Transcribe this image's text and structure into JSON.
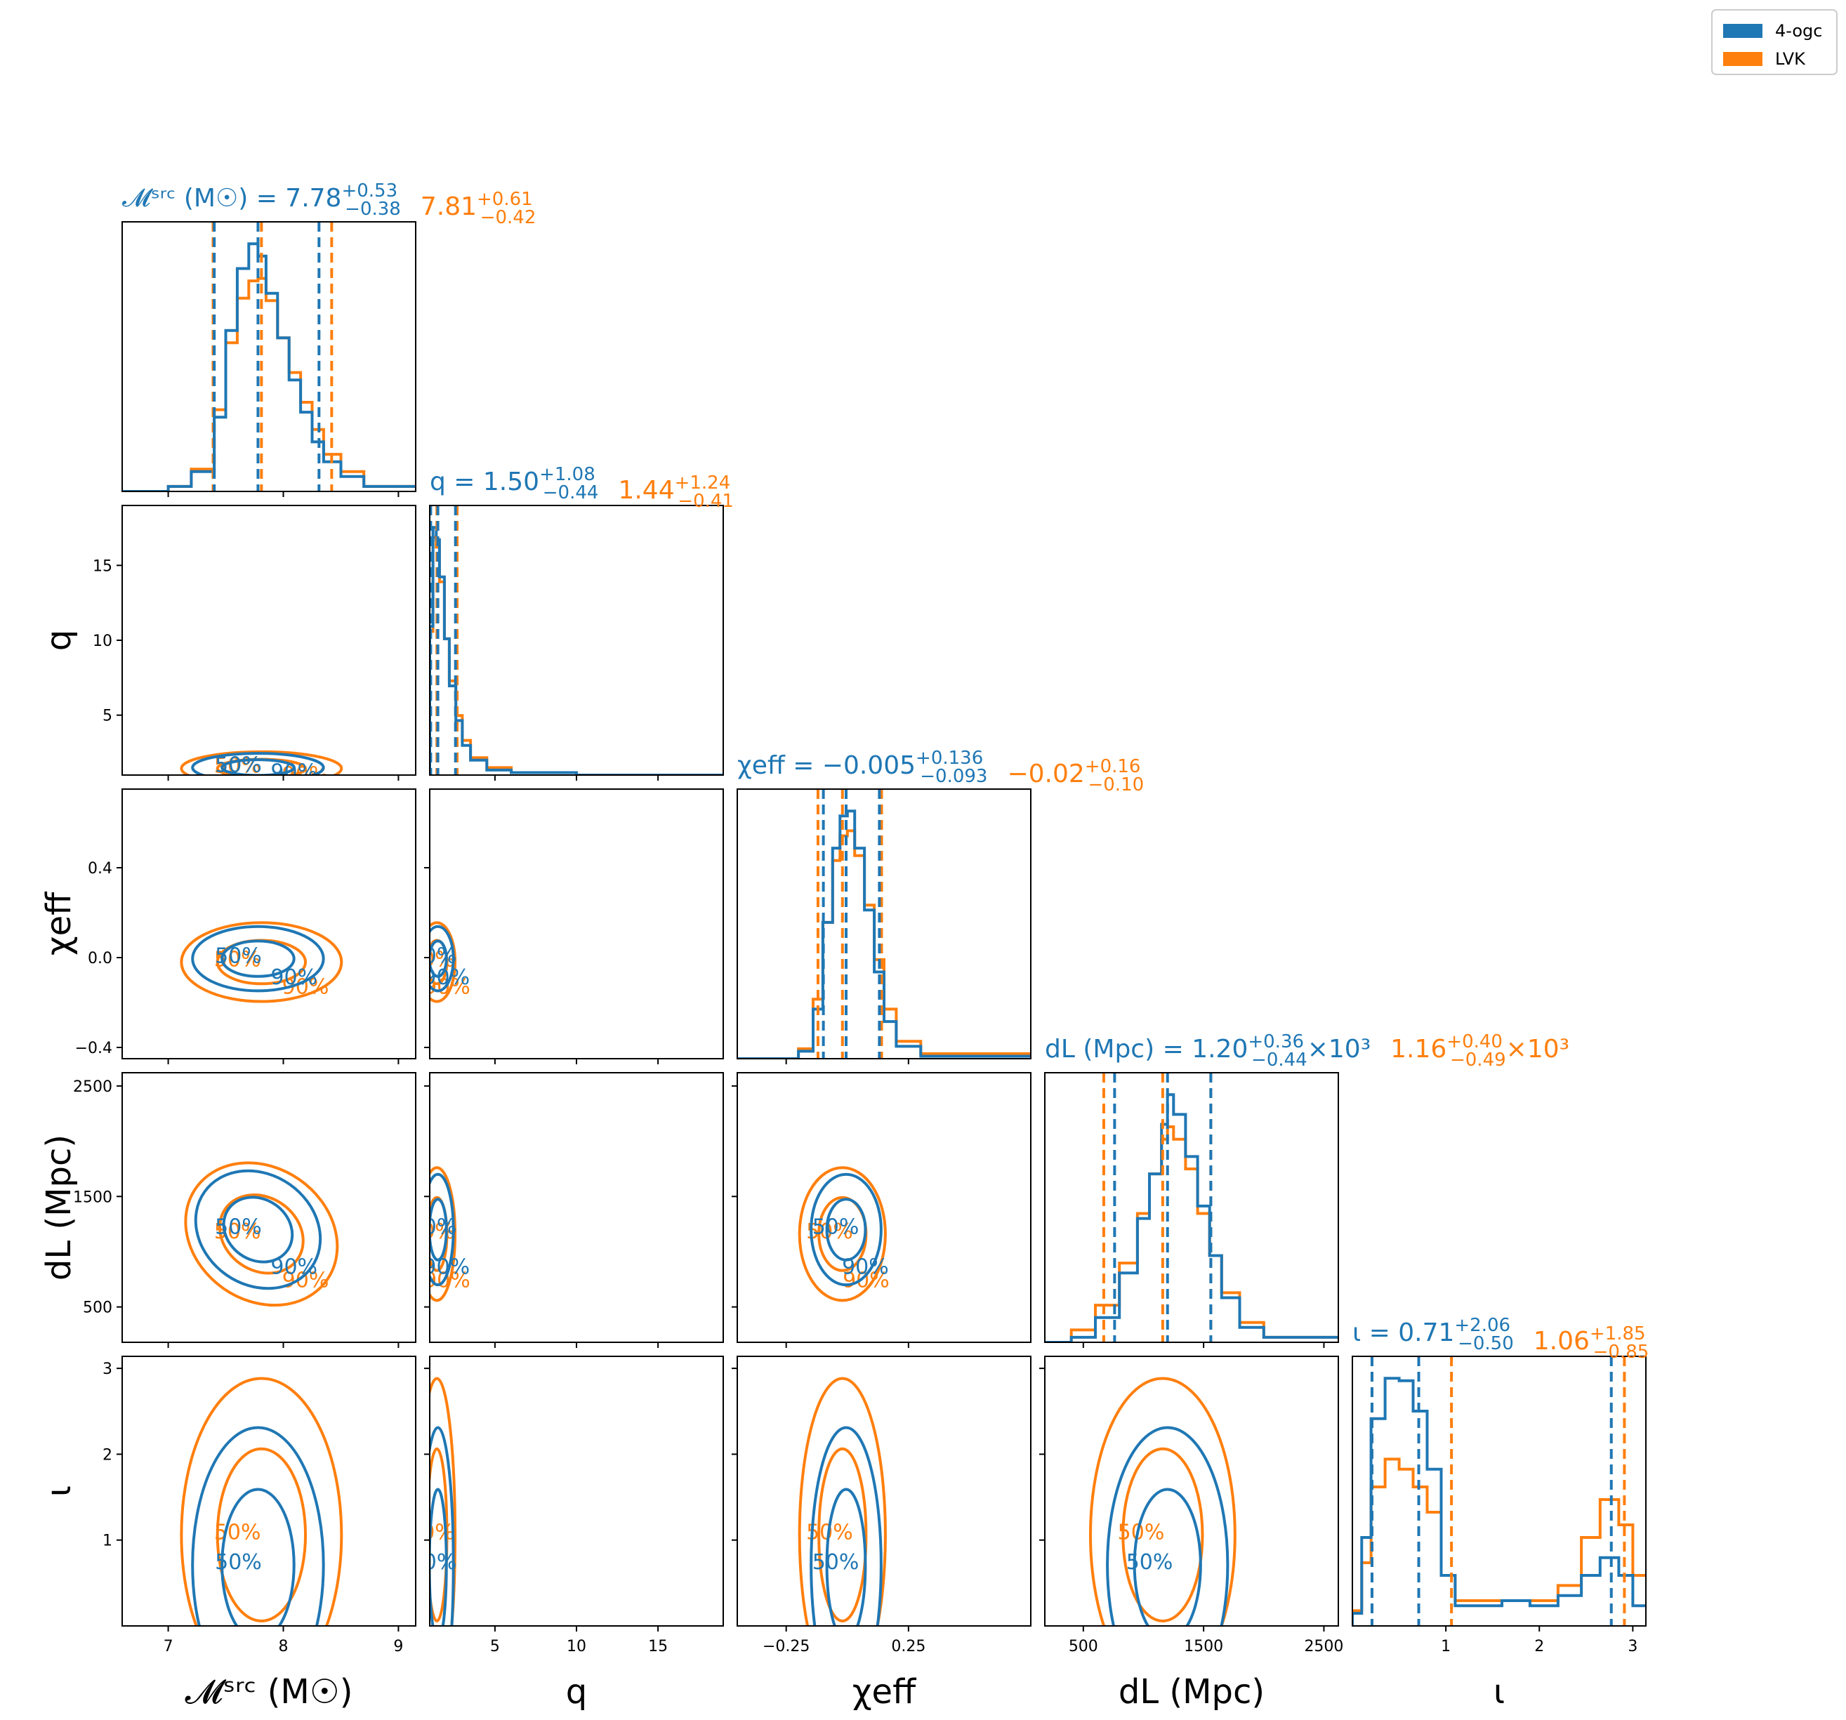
{
  "colors": {
    "blue": "#1f77b4",
    "orange": "#ff7f0e"
  },
  "legend": {
    "entries": [
      {
        "label": "4-ogc",
        "color": "#1f77b4"
      },
      {
        "label": "LVK",
        "color": "#ff7f0e"
      }
    ],
    "placement": "top-right"
  },
  "titles": [
    {
      "param": "mc",
      "name": "𝓜ˢʳᶜ (M☉)",
      "blue": {
        "median": "7.78",
        "plus": "+0.53",
        "minus": "−0.38"
      },
      "orange": {
        "median": "7.81",
        "plus": "+0.61",
        "minus": "−0.42"
      },
      "suffix": ""
    },
    {
      "param": "q",
      "name": "q",
      "blue": {
        "median": "1.50",
        "plus": "+1.08",
        "minus": "−0.44"
      },
      "orange": {
        "median": "1.44",
        "plus": "+1.24",
        "minus": "−0.41"
      },
      "suffix": ""
    },
    {
      "param": "chi",
      "name": "χeff",
      "blue": {
        "median": "−0.005",
        "plus": "+0.136",
        "minus": "−0.093"
      },
      "orange": {
        "median": "−0.02",
        "plus": "+0.16",
        "minus": "−0.10"
      },
      "suffix": ""
    },
    {
      "param": "dl",
      "name": "dL (Mpc)",
      "blue": {
        "median": "1.20",
        "plus": "+0.36",
        "minus": "−0.44"
      },
      "orange": {
        "median": "1.16",
        "plus": "+0.40",
        "minus": "−0.49"
      },
      "suffix": "×10³"
    },
    {
      "param": "iota",
      "name": "ι",
      "blue": {
        "median": "0.71",
        "plus": "+2.06",
        "minus": "−0.50"
      },
      "orange": {
        "median": "1.06",
        "plus": "+1.85",
        "minus": "−0.85"
      },
      "suffix": ""
    }
  ],
  "chart_data": {
    "type": "corner",
    "series": [
      {
        "name": "4-ogc",
        "color": "#1f77b4"
      },
      {
        "name": "LVK",
        "color": "#ff7f0e"
      }
    ],
    "params": [
      {
        "key": "mc",
        "label": "𝓜ˢʳᶜ (M☉)",
        "range": [
          6.6,
          9.15
        ],
        "ticks": [
          7,
          8,
          9
        ],
        "tick_labels": [
          "7",
          "8",
          "9"
        ]
      },
      {
        "key": "q",
        "label": "q",
        "range": [
          1,
          19
        ],
        "ticks": [
          5,
          10,
          15
        ],
        "tick_labels": [
          "5",
          "10",
          "15"
        ]
      },
      {
        "key": "chi",
        "label": "χeff",
        "range": [
          -0.45,
          0.75
        ],
        "ticks": [
          -0.25,
          0.25
        ],
        "tick_labels": [
          "−0.25",
          "0.25"
        ],
        "y_ticks": [
          -0.4,
          0.0,
          0.4
        ],
        "y_tick_labels": [
          "−0.4",
          "0.0",
          "0.4"
        ]
      },
      {
        "key": "dl",
        "label": "dL (Mpc)",
        "range": [
          180,
          2620
        ],
        "ticks": [
          500,
          1500,
          2500
        ],
        "tick_labels": [
          "500",
          "1500",
          "2500"
        ]
      },
      {
        "key": "iota",
        "label": "ι",
        "range": [
          0,
          3.14
        ],
        "ticks": [
          1,
          2,
          3
        ],
        "tick_labels": [
          "1",
          "2",
          "3"
        ]
      }
    ],
    "quantile_lines": {
      "mc": {
        "blue": [
          7.4,
          7.78,
          8.31
        ],
        "orange": [
          7.39,
          7.81,
          8.42
        ]
      },
      "q": {
        "blue": [
          1.06,
          1.5,
          2.58
        ],
        "orange": [
          1.03,
          1.44,
          2.68
        ]
      },
      "chi": {
        "blue": [
          -0.098,
          -0.005,
          0.131
        ],
        "orange": [
          -0.12,
          -0.02,
          0.14
        ]
      },
      "dl": {
        "blue": [
          760,
          1200,
          1560
        ],
        "orange": [
          670,
          1160,
          1560
        ]
      },
      "iota": {
        "blue": [
          0.21,
          0.71,
          2.77
        ],
        "orange": [
          0.21,
          1.06,
          2.91
        ]
      }
    },
    "histograms": {
      "mc": {
        "x": [
          6.6,
          7.0,
          7.2,
          7.4,
          7.5,
          7.6,
          7.7,
          7.78,
          7.85,
          7.95,
          8.05,
          8.15,
          8.25,
          8.35,
          8.5,
          8.7,
          9.15
        ],
        "blue": [
          0.0,
          0.02,
          0.08,
          0.3,
          0.65,
          0.9,
          1.0,
          0.95,
          0.8,
          0.62,
          0.45,
          0.32,
          0.2,
          0.12,
          0.06,
          0.02,
          0.0
        ],
        "orange": [
          0.0,
          0.02,
          0.09,
          0.33,
          0.6,
          0.78,
          0.85,
          0.86,
          0.77,
          0.62,
          0.48,
          0.36,
          0.25,
          0.15,
          0.08,
          0.02,
          0.0
        ]
      },
      "q": {
        "x": [
          1.0,
          1.2,
          1.4,
          1.6,
          1.9,
          2.2,
          2.6,
          3.0,
          3.5,
          4.5,
          6,
          10,
          19
        ],
        "blue": [
          0.6,
          1.0,
          0.95,
          0.8,
          0.55,
          0.36,
          0.22,
          0.12,
          0.06,
          0.02,
          0.01,
          0.0,
          0.0
        ],
        "orange": [
          0.58,
          0.96,
          0.92,
          0.78,
          0.55,
          0.38,
          0.24,
          0.14,
          0.07,
          0.03,
          0.01,
          0.0,
          0.0
        ]
      },
      "chi": {
        "x": [
          -0.45,
          -0.2,
          -0.14,
          -0.1,
          -0.06,
          -0.03,
          0.0,
          0.03,
          0.07,
          0.11,
          0.15,
          0.2,
          0.3,
          0.75
        ],
        "blue": [
          0.0,
          0.03,
          0.2,
          0.55,
          0.85,
          0.98,
          1.0,
          0.85,
          0.6,
          0.35,
          0.15,
          0.05,
          0.01,
          0.0
        ],
        "orange": [
          0.0,
          0.04,
          0.24,
          0.55,
          0.8,
          0.9,
          0.92,
          0.82,
          0.62,
          0.4,
          0.2,
          0.07,
          0.02,
          0.0
        ]
      },
      "dl": {
        "x": [
          180,
          400,
          600,
          800,
          950,
          1050,
          1150,
          1200,
          1250,
          1350,
          1450,
          1550,
          1650,
          1800,
          2000,
          2620
        ],
        "blue": [
          0.0,
          0.02,
          0.1,
          0.28,
          0.5,
          0.68,
          0.88,
          1.0,
          0.92,
          0.75,
          0.55,
          0.35,
          0.18,
          0.06,
          0.02,
          0.0
        ],
        "orange": [
          0.0,
          0.05,
          0.15,
          0.32,
          0.52,
          0.68,
          0.82,
          0.87,
          0.82,
          0.7,
          0.52,
          0.35,
          0.2,
          0.08,
          0.02,
          0.0
        ]
      },
      "iota": {
        "x": [
          0.0,
          0.1,
          0.2,
          0.35,
          0.5,
          0.65,
          0.8,
          0.95,
          1.1,
          1.3,
          1.6,
          1.9,
          2.2,
          2.45,
          2.65,
          2.85,
          3.0,
          3.14
        ],
        "blue": [
          0.05,
          0.35,
          0.82,
          0.98,
          0.97,
          0.85,
          0.62,
          0.2,
          0.08,
          0.08,
          0.1,
          0.08,
          0.12,
          0.2,
          0.27,
          0.2,
          0.08,
          0.01
        ],
        "orange": [
          0.06,
          0.25,
          0.55,
          0.66,
          0.62,
          0.55,
          0.45,
          0.2,
          0.1,
          0.1,
          0.1,
          0.1,
          0.16,
          0.35,
          0.5,
          0.4,
          0.2,
          0.03
        ]
      }
    },
    "contour_levels": [
      "50%",
      "90%"
    ],
    "grid": false
  },
  "axis_labels": {
    "mc": "𝓜ˢʳᶜ (M☉)",
    "q": "q",
    "chi": "χeff",
    "dl": "dL (Mpc)",
    "iota": "ι"
  }
}
